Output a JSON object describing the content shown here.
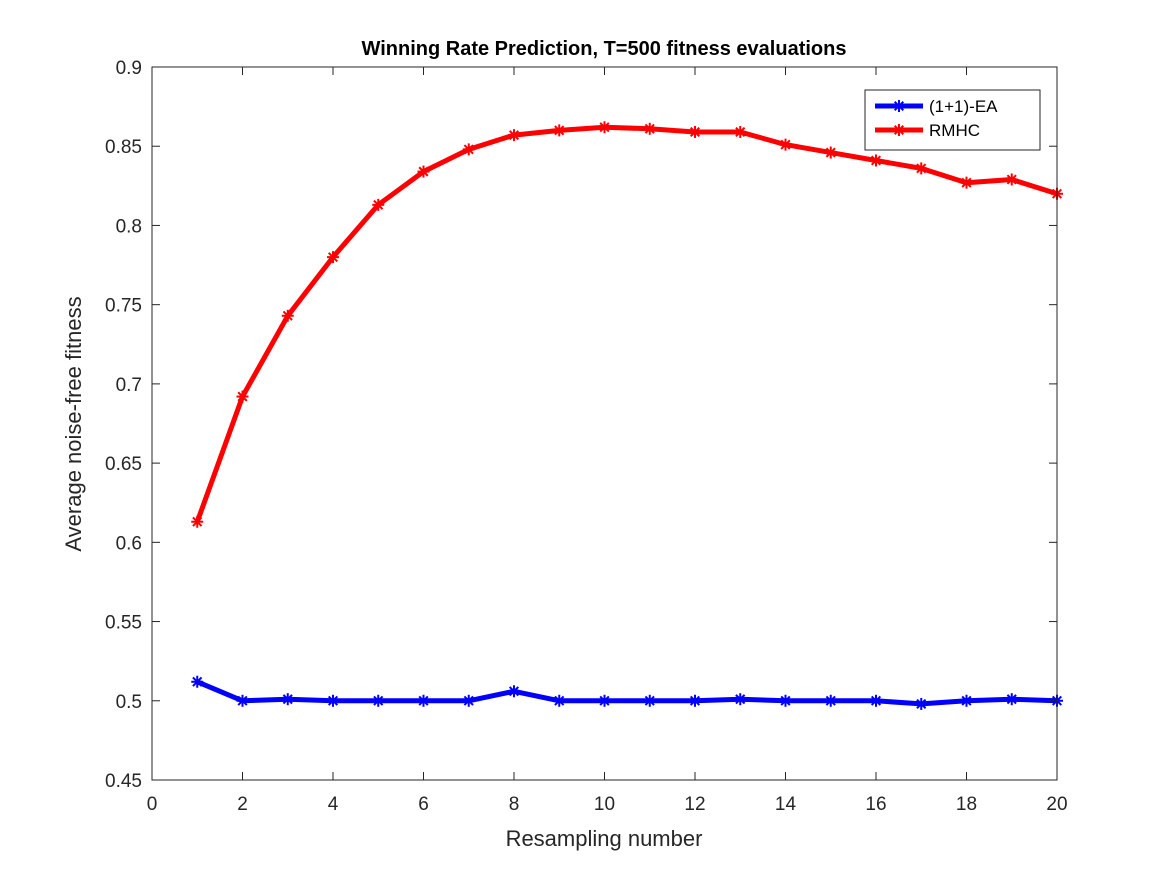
{
  "chart_data": {
    "type": "line",
    "title": "Winning Rate Prediction, T=500 fitness evaluations",
    "xlabel": "Resampling number",
    "ylabel": "Average noise-free fitness",
    "xlim": [
      0,
      20
    ],
    "ylim": [
      0.45,
      0.9
    ],
    "xticks": [
      0,
      2,
      4,
      6,
      8,
      10,
      12,
      14,
      16,
      18,
      20
    ],
    "yticks": [
      0.45,
      0.5,
      0.55,
      0.6,
      0.65,
      0.7,
      0.75,
      0.8,
      0.85,
      0.9
    ],
    "xtick_labels": [
      "0",
      "2",
      "4",
      "6",
      "8",
      "10",
      "12",
      "14",
      "16",
      "18",
      "20"
    ],
    "ytick_labels": [
      "0.45",
      "0.5",
      "0.55",
      "0.6",
      "0.65",
      "0.7",
      "0.75",
      "0.8",
      "0.85",
      "0.9"
    ],
    "grid": false,
    "legend_position": "top-right",
    "x": [
      1,
      2,
      3,
      4,
      5,
      6,
      7,
      8,
      9,
      10,
      11,
      12,
      13,
      14,
      15,
      16,
      17,
      18,
      19,
      20
    ],
    "series": [
      {
        "name": "(1+1)-EA",
        "color": "#0000ff",
        "marker": "asterisk",
        "values": [
          0.512,
          0.5,
          0.501,
          0.5,
          0.5,
          0.5,
          0.5,
          0.506,
          0.5,
          0.5,
          0.5,
          0.5,
          0.501,
          0.5,
          0.5,
          0.5,
          0.498,
          0.5,
          0.501,
          0.5
        ]
      },
      {
        "name": "RMHC",
        "color": "#ff0000",
        "marker": "asterisk",
        "values": [
          0.613,
          0.692,
          0.743,
          0.78,
          0.813,
          0.834,
          0.848,
          0.857,
          0.86,
          0.862,
          0.861,
          0.859,
          0.859,
          0.851,
          0.846,
          0.841,
          0.836,
          0.827,
          0.829,
          0.82
        ]
      }
    ]
  }
}
